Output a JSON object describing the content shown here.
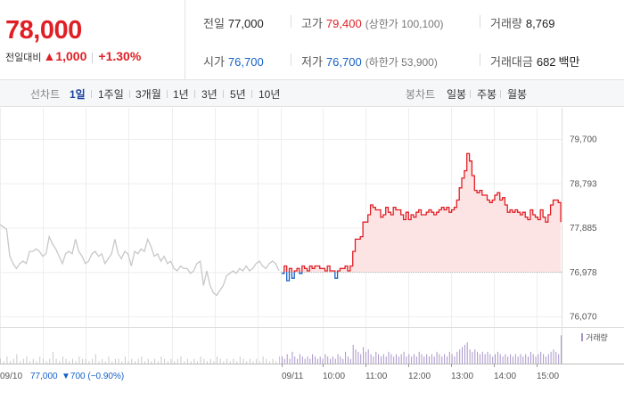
{
  "summary": {
    "current_price": "78,000",
    "change_label": "전일대비",
    "change_arrow": "▲",
    "change_amount": "1,000",
    "change_percent": "+1.30%",
    "prev_close_label": "전일",
    "prev_close": "77,000",
    "high_label": "고가",
    "high": "79,400",
    "upper_limit_text": "(상한가 100,100)",
    "volume_label": "거래량",
    "volume": "8,769",
    "open_label": "시가",
    "open": "76,700",
    "low_label": "저가",
    "low": "76,700",
    "lower_limit_text": "(하한가 53,900)",
    "trade_value_label": "거래대금",
    "trade_value": "682",
    "trade_value_unit": "백만"
  },
  "tabs": {
    "line_label": "선차트",
    "line_items": [
      "1일",
      "1주일",
      "3개월",
      "1년",
      "3년",
      "5년",
      "10년"
    ],
    "active_line": "1일",
    "candle_label": "봉차트",
    "candle_items": [
      "일봉",
      "주봉",
      "월봉"
    ]
  },
  "colors": {
    "up": "#e01f25",
    "down": "#1561c6",
    "prev_day_line": "#c8c8c8",
    "area_fill": "#fde4e4",
    "volume_bar": "#c9c9c9",
    "volume_bar_today": "#a894c9"
  },
  "chart_data": {
    "type": "line",
    "title": "",
    "ylabel": "",
    "xlabel": "",
    "ylim": [
      76070,
      79700
    ],
    "yticks": [
      "79,700",
      "78,793",
      "77,885",
      "76,978",
      "76,070"
    ],
    "baseline": 76978,
    "x_tick_labels": [
      "09/11",
      "10:00",
      "11:00",
      "12:00",
      "13:00",
      "14:00",
      "15:00"
    ],
    "prev_day": {
      "date": "09/10",
      "close_text": "77,000",
      "change_text": "▼700 (−0.90%)",
      "series": [
        77950,
        77900,
        77850,
        77300,
        77150,
        77050,
        77150,
        77200,
        77150,
        77400,
        77400,
        77450,
        77400,
        77300,
        77350,
        77700,
        77550,
        77450,
        77300,
        77150,
        77350,
        77400,
        77350,
        77650,
        77400,
        77300,
        77150,
        77200,
        77350,
        77400,
        77300,
        77350,
        77150,
        77250,
        77350,
        77650,
        77350,
        77250,
        77400,
        77350,
        77100,
        77400,
        77350,
        77450,
        77400,
        77650,
        77500,
        77300,
        77350,
        77200,
        77300,
        77150,
        77200,
        77050,
        77000,
        77100,
        77050,
        77050,
        76950,
        77000,
        77150,
        77200,
        76700,
        77000,
        76700,
        76550,
        76500,
        76600,
        76700,
        76900,
        76950,
        77000,
        76950,
        77050,
        77000,
        77100,
        77000,
        77050,
        77150,
        77200,
        77100,
        77050,
        77150,
        77200,
        77150,
        77000
      ]
    },
    "today": {
      "series": [
        76950,
        77100,
        76800,
        77050,
        76850,
        77000,
        77050,
        76950,
        77100,
        77050,
        77000,
        77100,
        77050,
        77100,
        77100,
        77050,
        77050,
        77000,
        77100,
        77000,
        77000,
        76850,
        77000,
        77050,
        77050,
        77100,
        77000,
        77100,
        77400,
        77650,
        77650,
        77700,
        78000,
        78000,
        78150,
        78350,
        78300,
        78250,
        78250,
        78100,
        78150,
        78300,
        78200,
        78150,
        78300,
        78250,
        78250,
        78150,
        78050,
        78200,
        78050,
        78150,
        78100,
        78200,
        78250,
        78150,
        78150,
        78200,
        78250,
        78200,
        78150,
        78200,
        78250,
        78300,
        78250,
        78300,
        78200,
        78250,
        78300,
        78450,
        78700,
        78900,
        79050,
        79400,
        79250,
        78950,
        78650,
        78600,
        78650,
        78550,
        78550,
        78450,
        78400,
        78450,
        78550,
        78600,
        78450,
        78500,
        78350,
        78200,
        78250,
        78200,
        78250,
        78200,
        78150,
        78200,
        78100,
        78050,
        78250,
        78150,
        78100,
        78050,
        78250,
        78100,
        78000,
        78150,
        78350,
        78450,
        78450,
        78400,
        78000
      ]
    },
    "volume_label": "거래량",
    "volume": {
      "prev_day": [
        2,
        1,
        3,
        1,
        2,
        4,
        1,
        2,
        3,
        1,
        2,
        1,
        3,
        2,
        1,
        2,
        5,
        2,
        1,
        3,
        2,
        1,
        2,
        1,
        3,
        2,
        2,
        1,
        2,
        4,
        1,
        2,
        1,
        3,
        1,
        2,
        2,
        1,
        3,
        1,
        2,
        1,
        2,
        3,
        1,
        2,
        1,
        2,
        1,
        3,
        2,
        1,
        2,
        1,
        2,
        3,
        1,
        2,
        1,
        2,
        1,
        3,
        2,
        1,
        2,
        1,
        3,
        2,
        1,
        2,
        1,
        2,
        1,
        3,
        2,
        1,
        2,
        1,
        2,
        1,
        3,
        2,
        1,
        2,
        1,
        3
      ],
      "today": [
        3,
        2,
        4,
        2,
        5,
        3,
        2,
        4,
        3,
        2,
        3,
        2,
        4,
        3,
        2,
        3,
        2,
        4,
        3,
        2,
        3,
        2,
        4,
        3,
        2,
        5,
        3,
        2,
        8,
        6,
        5,
        4,
        7,
        5,
        6,
        4,
        3,
        5,
        4,
        3,
        4,
        3,
        5,
        4,
        3,
        4,
        3,
        4,
        5,
        3,
        4,
        3,
        4,
        3,
        5,
        4,
        3,
        4,
        3,
        4,
        3,
        5,
        4,
        3,
        4,
        3,
        5,
        4,
        3,
        5,
        6,
        7,
        8,
        9,
        6,
        5,
        6,
        5,
        4,
        5,
        4,
        5,
        4,
        3,
        4,
        5,
        4,
        3,
        4,
        3,
        4,
        3,
        4,
        3,
        4,
        3,
        4,
        3,
        5,
        4,
        3,
        4,
        5,
        4,
        3,
        4,
        5,
        6,
        5,
        4,
        12
      ]
    }
  }
}
